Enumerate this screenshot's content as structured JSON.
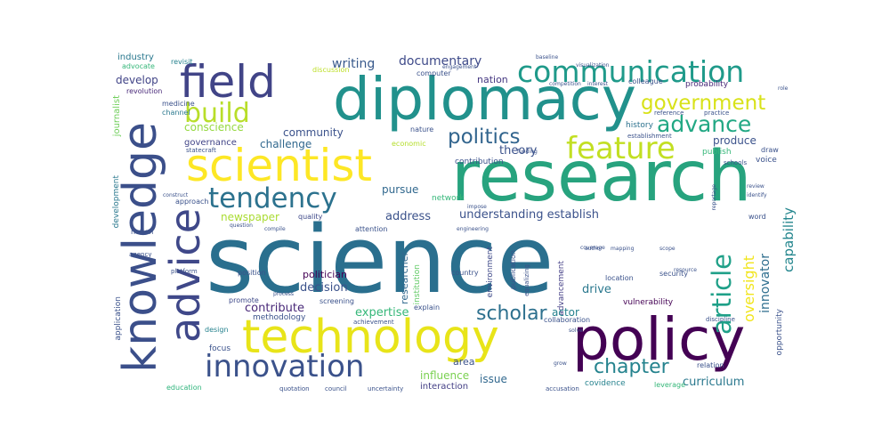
{
  "words": [
    {
      "text": "science",
      "color": "#2a6f8e"
    },
    {
      "text": "research",
      "color": "#27a37e"
    },
    {
      "text": "diplomacy",
      "color": "#21918c"
    },
    {
      "text": "policy",
      "color": "#440154"
    },
    {
      "text": "technology",
      "color": "#e8e419"
    },
    {
      "text": "knowledge",
      "color": "#3b4f8a"
    },
    {
      "text": "scientist",
      "color": "#fde725"
    },
    {
      "text": "advice",
      "color": "#3f4889"
    },
    {
      "text": "field",
      "color": "#414487"
    },
    {
      "text": "communication",
      "color": "#1f9a8a"
    },
    {
      "text": "innovation",
      "color": "#3b528b"
    },
    {
      "text": "build",
      "color": "#b8de29"
    },
    {
      "text": "tendency",
      "color": "#2c728e"
    },
    {
      "text": "feature",
      "color": "#c2df23"
    },
    {
      "text": "government",
      "color": "#d8e219"
    },
    {
      "text": "advance",
      "color": "#22a884"
    },
    {
      "text": "politics",
      "color": "#32658e"
    },
    {
      "text": "article",
      "color": "#1fa088"
    },
    {
      "text": "scholar",
      "color": "#2d708e"
    },
    {
      "text": "chapter",
      "color": "#25838e"
    },
    {
      "text": "capability",
      "color": "#24868e"
    },
    {
      "text": "oversight",
      "color": "#f1e51d"
    },
    {
      "text": "innovator",
      "color": "#2e6e8e"
    },
    {
      "text": "documentary",
      "color": "#3e4a89"
    },
    {
      "text": "writing",
      "color": "#38598c"
    },
    {
      "text": "nation",
      "color": "#453781"
    },
    {
      "text": "develop",
      "color": "#414487"
    },
    {
      "text": "revolution",
      "color": "#482878"
    },
    {
      "text": "industry",
      "color": "#2a788e"
    },
    {
      "text": "advocate",
      "color": "#35b779"
    },
    {
      "text": "revisit",
      "color": "#26828e"
    },
    {
      "text": "journalist",
      "color": "#6ece58"
    },
    {
      "text": "development",
      "color": "#2a788e"
    },
    {
      "text": "application",
      "color": "#3b528b"
    },
    {
      "text": "education",
      "color": "#2fb47c"
    },
    {
      "text": "conscience",
      "color": "#95d840"
    },
    {
      "text": "governance",
      "color": "#414487"
    },
    {
      "text": "community",
      "color": "#3b528b"
    },
    {
      "text": "challenge",
      "color": "#31688e"
    },
    {
      "text": "theory",
      "color": "#3b528b"
    },
    {
      "text": "pursue",
      "color": "#31688e"
    },
    {
      "text": "produce",
      "color": "#3b528b"
    },
    {
      "text": "history",
      "color": "#2c728e"
    },
    {
      "text": "publish",
      "color": "#35b779"
    },
    {
      "text": "probability",
      "color": "#482878"
    },
    {
      "text": "newspaper",
      "color": "#aadc32"
    },
    {
      "text": "quality",
      "color": "#3e4989"
    },
    {
      "text": "address",
      "color": "#3b528b"
    },
    {
      "text": "understanding establish",
      "color": "#3b528b"
    },
    {
      "text": "researcher",
      "color": "#31688e"
    },
    {
      "text": "institution",
      "color": "#5ec962"
    },
    {
      "text": "environment",
      "color": "#3e4989"
    },
    {
      "text": "advancement",
      "color": "#433e85"
    },
    {
      "text": "politician",
      "color": "#440154"
    },
    {
      "text": "decision",
      "color": "#3b528b"
    },
    {
      "text": "drive",
      "color": "#2a788e"
    },
    {
      "text": "contribute",
      "color": "#482878"
    },
    {
      "text": "expertise",
      "color": "#35b779"
    },
    {
      "text": "actor",
      "color": "#26828e"
    },
    {
      "text": "methodology",
      "color": "#3b528b"
    },
    {
      "text": "influence",
      "color": "#7ad151"
    },
    {
      "text": "area",
      "color": "#3b528b"
    },
    {
      "text": "issue",
      "color": "#31688e"
    },
    {
      "text": "interaction",
      "color": "#433e85"
    },
    {
      "text": "covidence",
      "color": "#26828e"
    },
    {
      "text": "curriculum",
      "color": "#2a788e"
    },
    {
      "text": "vulnerability",
      "color": "#440154"
    },
    {
      "text": "leverage",
      "color": "#35b779"
    },
    {
      "text": "focus",
      "color": "#3b528b"
    },
    {
      "text": "design",
      "color": "#26828e"
    },
    {
      "text": "position",
      "color": "#3b528b"
    },
    {
      "text": "screening",
      "color": "#3b528b"
    },
    {
      "text": "promote",
      "color": "#3e4989"
    },
    {
      "text": "security",
      "color": "#3b528b"
    },
    {
      "text": "location",
      "color": "#3b528b"
    },
    {
      "text": "contribution",
      "color": "#3b528b"
    },
    {
      "text": "country",
      "color": "#3b528b"
    },
    {
      "text": "explain",
      "color": "#3b528b"
    },
    {
      "text": "medicine",
      "color": "#3b528b"
    },
    {
      "text": "channel",
      "color": "#2a788e"
    },
    {
      "text": "computer",
      "color": "#3b528b"
    },
    {
      "text": "discussion",
      "color": "#bddf26"
    },
    {
      "text": "nature",
      "color": "#3b528b"
    },
    {
      "text": "economic",
      "color": "#b5de2b"
    },
    {
      "text": "colleague",
      "color": "#3b528b"
    },
    {
      "text": "reference",
      "color": "#3b528b"
    },
    {
      "text": "practice",
      "color": "#3b528b"
    },
    {
      "text": "establishment",
      "color": "#3b528b"
    },
    {
      "text": "schools",
      "color": "#3b528b"
    },
    {
      "text": "voice",
      "color": "#3b528b"
    },
    {
      "text": "draw",
      "color": "#3b528b"
    },
    {
      "text": "word",
      "color": "#3b528b"
    },
    {
      "text": "opportunity",
      "color": "#3b528b"
    },
    {
      "text": "relation",
      "color": "#3b528b"
    },
    {
      "text": "network",
      "color": "#35b779"
    },
    {
      "text": "approach",
      "color": "#3b528b"
    },
    {
      "text": "notion",
      "color": "#3b528b"
    },
    {
      "text": "attention",
      "color": "#3b528b"
    },
    {
      "text": "agency",
      "color": "#3b528b"
    },
    {
      "text": "platform",
      "color": "#3b528b"
    },
    {
      "text": "statecraft",
      "color": "#3b528b"
    },
    {
      "text": "engagement",
      "color": "#3b528b"
    },
    {
      "text": "competition",
      "color": "#3b528b"
    },
    {
      "text": "interest",
      "color": "#3b528b"
    },
    {
      "text": "mapping",
      "color": "#3b528b"
    },
    {
      "text": "author",
      "color": "#3b528b"
    },
    {
      "text": "scope",
      "color": "#3b528b"
    },
    {
      "text": "publication",
      "color": "#3b528b"
    },
    {
      "text": "equalizing",
      "color": "#3b528b"
    },
    {
      "text": "collaboration",
      "color": "#3b528b"
    },
    {
      "text": "discipline",
      "color": "#3b528b"
    },
    {
      "text": "achievement",
      "color": "#3b528b"
    },
    {
      "text": "quotation",
      "color": "#3b528b"
    },
    {
      "text": "council",
      "color": "#3b528b"
    },
    {
      "text": "uncertainty",
      "color": "#3b528b"
    },
    {
      "text": "accusation",
      "color": "#3b528b"
    },
    {
      "text": "process",
      "color": "#3b528b"
    },
    {
      "text": "question",
      "color": "#3b528b"
    },
    {
      "text": "coverage",
      "color": "#3b528b"
    },
    {
      "text": "baseline",
      "color": "#3b528b"
    },
    {
      "text": "visualization",
      "color": "#3b528b"
    },
    {
      "text": "engineering",
      "color": "#3b528b"
    },
    {
      "text": "resource",
      "color": "#3b528b"
    },
    {
      "text": "role",
      "color": "#3b528b"
    },
    {
      "text": "funding",
      "color": "#3b528b"
    },
    {
      "text": "review",
      "color": "#3b528b"
    },
    {
      "text": "identify",
      "color": "#3b528b"
    },
    {
      "text": "reportage",
      "color": "#3b528b"
    },
    {
      "text": "compile",
      "color": "#3b528b"
    },
    {
      "text": "impose",
      "color": "#3b528b"
    },
    {
      "text": "construct",
      "color": "#3b528b"
    },
    {
      "text": "grow",
      "color": "#3b528b"
    },
    {
      "text": "solve",
      "color": "#3b528b"
    }
  ]
}
